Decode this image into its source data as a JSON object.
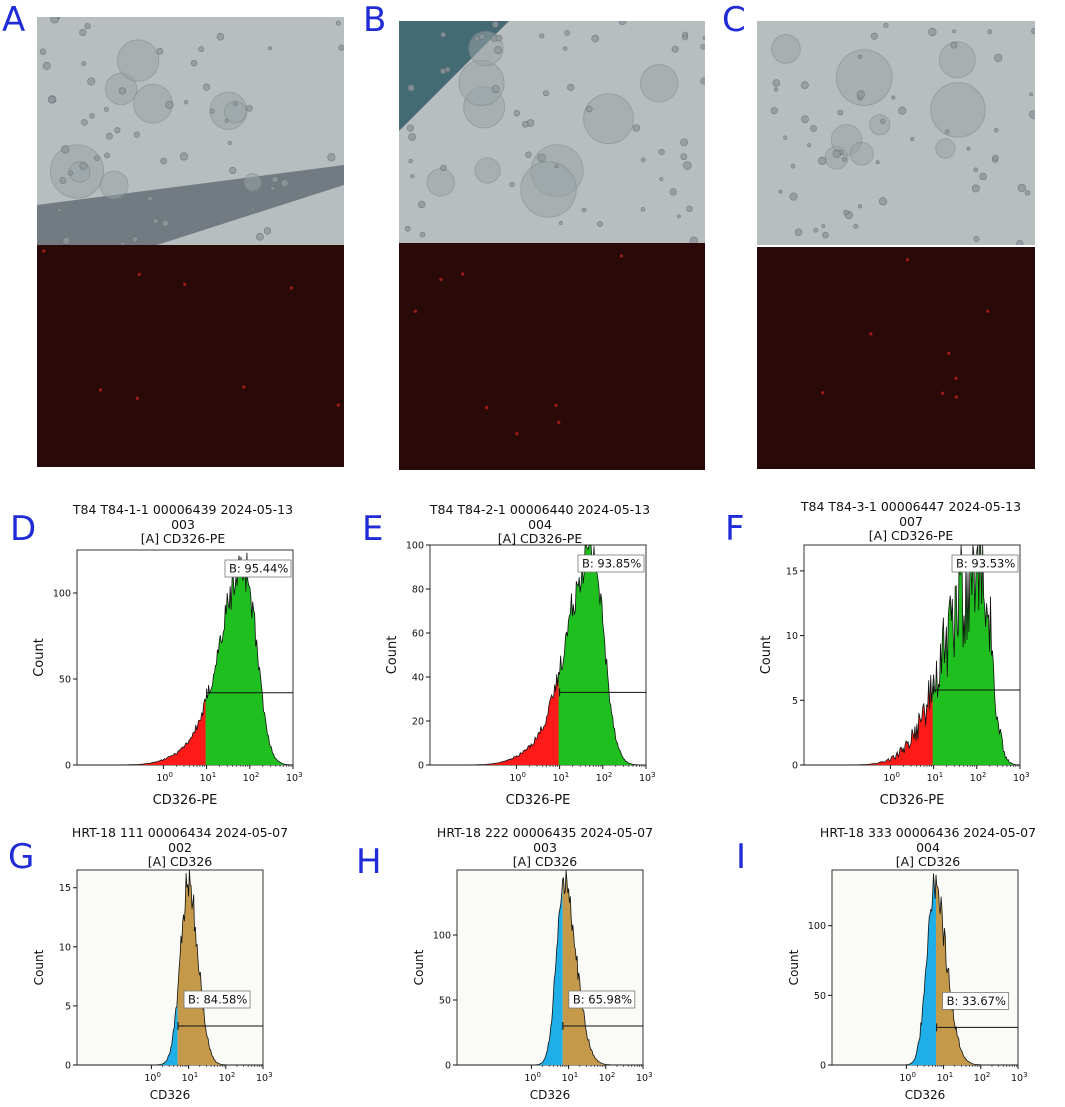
{
  "figure": {
    "panel_letters": [
      "A",
      "B",
      "C",
      "D",
      "E",
      "F",
      "G",
      "H",
      "I"
    ],
    "colors": {
      "letter": "#1f2bd6",
      "brightfield": "#b8bec0",
      "fluorescence": "#2a0a08",
      "gated_green": "#1fbf1f",
      "ungated_red": "#ff1a1a",
      "gated_brown": "#c49a4a",
      "ungated_blue": "#1faee8"
    }
  },
  "microscopy": [
    {
      "letter": "A"
    },
    {
      "letter": "B"
    },
    {
      "letter": "C"
    }
  ],
  "chart_data": [
    {
      "panel": "D",
      "type": "area",
      "title_lines": [
        "T84 T84-1-1 00006439 2024-05-13",
        "003",
        "[A] CD326-PE"
      ],
      "xlabel": "CD326-PE",
      "ylabel": "Count",
      "x_scale": "log",
      "x_range": [
        0.01,
        1000
      ],
      "x_ticks": [
        "10^0",
        "10^1",
        "10^2",
        "10^3"
      ],
      "y_ticks": [
        0,
        50,
        100
      ],
      "ylim": [
        0,
        125
      ],
      "gate_label": "B: 95.44%",
      "gate_start": 10,
      "gate_end": 1000,
      "gate_level": 42,
      "peak_x": 75,
      "peak_y": 115,
      "shape": "left-skew",
      "colors": {
        "gated": "#1fbf1f",
        "ungated": "#ff1a1a"
      }
    },
    {
      "panel": "E",
      "type": "area",
      "title_lines": [
        "T84 T84-2-1 00006440 2024-05-13",
        "004",
        "[A] CD326-PE"
      ],
      "xlabel": "CD326-PE",
      "ylabel": "Count",
      "x_scale": "log",
      "x_range": [
        0.01,
        1000
      ],
      "x_ticks": [
        "10^0",
        "10^1",
        "10^2",
        "10^3"
      ],
      "y_ticks": [
        0,
        20,
        40,
        60,
        80,
        100
      ],
      "ylim": [
        0,
        100
      ],
      "gate_label": "B: 93.85%",
      "gate_start": 10,
      "gate_end": 1000,
      "gate_level": 33,
      "peak_x": 55,
      "peak_y": 98,
      "shape": "left-skew",
      "colors": {
        "gated": "#1fbf1f",
        "ungated": "#ff1a1a"
      }
    },
    {
      "panel": "F",
      "type": "area",
      "title_lines": [
        "T84 T84-3-1 00006447 2024-05-13",
        "007",
        "[A] CD326-PE"
      ],
      "xlabel": "CD326-PE",
      "ylabel": "Count",
      "x_scale": "log",
      "x_range": [
        0.01,
        1000
      ],
      "x_ticks": [
        "10^0",
        "10^1",
        "10^2",
        "10^3"
      ],
      "y_ticks": [
        0,
        5,
        10,
        15
      ],
      "ylim": [
        0,
        17
      ],
      "gate_label": "B: 93.53%",
      "gate_start": 10,
      "gate_end": 1000,
      "gate_level": 5.8,
      "peak_x": 130,
      "peak_y": 15.5,
      "shape": "broad-left",
      "colors": {
        "gated": "#1fbf1f",
        "ungated": "#ff1a1a"
      }
    },
    {
      "panel": "G",
      "type": "area",
      "title_lines": [
        "HRT-18 111 00006434 2024-05-07",
        "002",
        "[A] CD326"
      ],
      "xlabel": "CD326",
      "ylabel": "Count",
      "x_scale": "log",
      "x_range": [
        0.01,
        1000
      ],
      "x_ticks": [
        "10^0",
        "10^1",
        "10^2",
        "10^3"
      ],
      "y_ticks": [
        0,
        5,
        10,
        15
      ],
      "ylim": [
        0,
        16.5
      ],
      "gate_label": "B: 84.58%",
      "gate_start": 5.2,
      "gate_end": 1000,
      "gate_level": 3.3,
      "peak_x": 10,
      "peak_y": 15.5,
      "shape": "narrow",
      "colors": {
        "gated": "#c49a4a",
        "ungated": "#1faee8"
      }
    },
    {
      "panel": "H",
      "type": "area",
      "title_lines": [
        "HRT-18 222 00006435 2024-05-07",
        "003",
        "[A] CD326"
      ],
      "xlabel": "CD326",
      "ylabel": "Count",
      "x_scale": "log",
      "x_range": [
        0.01,
        1000
      ],
      "x_ticks": [
        "10^0",
        "10^1",
        "10^2",
        "10^3"
      ],
      "y_ticks": [
        0,
        50,
        100
      ],
      "ylim": [
        0,
        150
      ],
      "gate_label": "B: 65.98%",
      "gate_start": 7,
      "gate_end": 1000,
      "gate_level": 30,
      "peak_x": 7.5,
      "peak_y": 142,
      "shape": "right-skew",
      "colors": {
        "gated": "#c49a4a",
        "ungated": "#1faee8"
      }
    },
    {
      "panel": "I",
      "type": "area",
      "title_lines": [
        "HRT-18 333 00006436 2024-05-07",
        "004",
        "[A] CD326"
      ],
      "xlabel": "CD326",
      "ylabel": "Count",
      "x_scale": "log",
      "x_range": [
        0.01,
        1000
      ],
      "x_ticks": [
        "10^0",
        "10^1",
        "10^2",
        "10^3"
      ],
      "y_ticks": [
        0,
        50,
        100
      ],
      "ylim": [
        0,
        140
      ],
      "gate_label": "B: 33.67%",
      "gate_start": 6.5,
      "gate_end": 1000,
      "gate_level": 27,
      "peak_x": 5.5,
      "peak_y": 130,
      "shape": "right-skew",
      "colors": {
        "gated": "#c49a4a",
        "ungated": "#1faee8"
      }
    }
  ]
}
